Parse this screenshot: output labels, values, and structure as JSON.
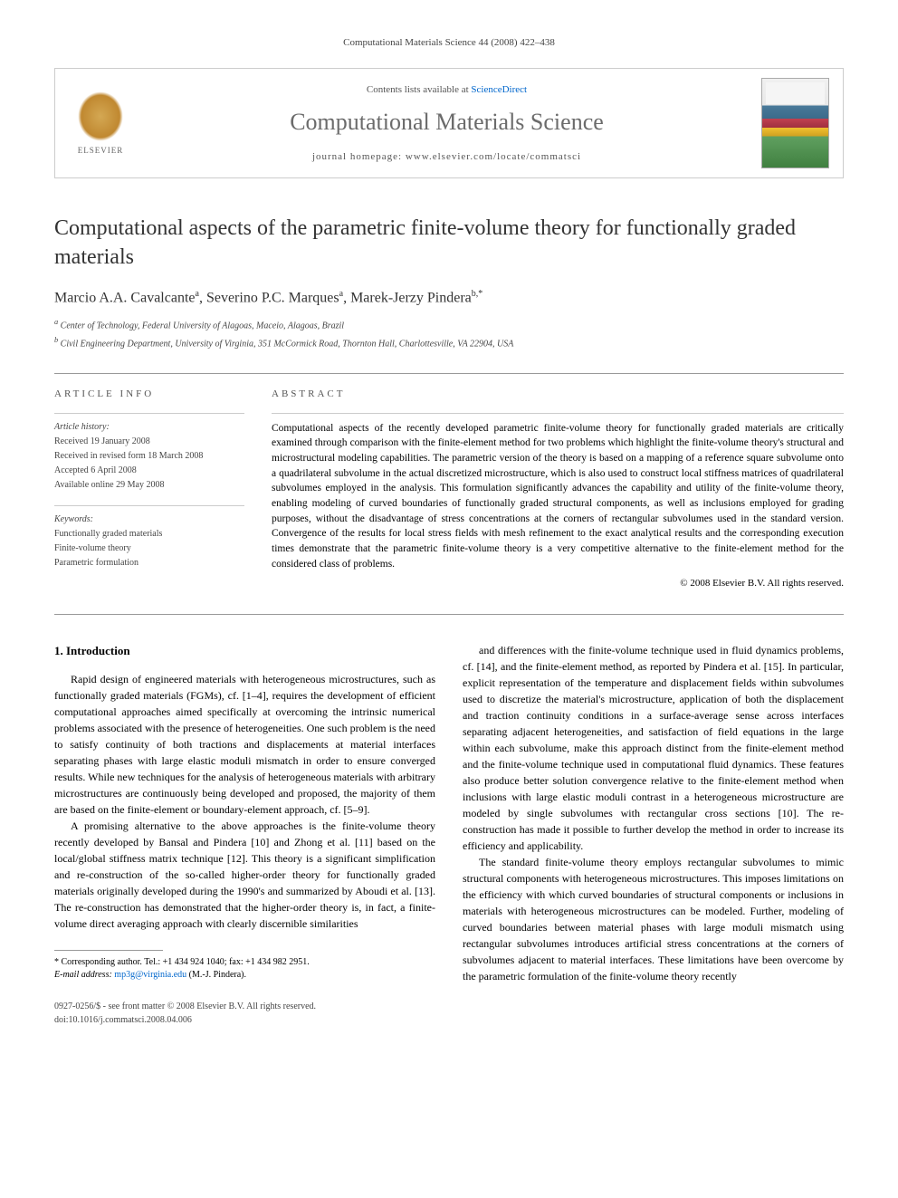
{
  "header": {
    "citation": "Computational Materials Science 44 (2008) 422–438"
  },
  "banner": {
    "publisher": "ELSEVIER",
    "contents_prefix": "Contents lists available at ",
    "contents_link": "ScienceDirect",
    "journal_name": "Computational Materials Science",
    "homepage_prefix": "journal homepage: ",
    "homepage_url": "www.elsevier.com/locate/commatsci"
  },
  "article": {
    "title": "Computational aspects of the parametric finite-volume theory for functionally graded materials",
    "authors_html": "Marcio A.A. Cavalcante",
    "author1": "Marcio A.A. Cavalcante",
    "author1_sup": "a",
    "author2": "Severino P.C. Marques",
    "author2_sup": "a",
    "author3": "Marek-Jerzy Pindera",
    "author3_sup": "b,*",
    "affiliation_a": "Center of Technology, Federal University of Alagoas, Maceio, Alagoas, Brazil",
    "affiliation_b": "Civil Engineering Department, University of Virginia, 351 McCormick Road, Thornton Hall, Charlottesville, VA 22904, USA"
  },
  "info": {
    "heading": "ARTICLE INFO",
    "history_label": "Article history:",
    "received": "Received 19 January 2008",
    "revised": "Received in revised form 18 March 2008",
    "accepted": "Accepted 6 April 2008",
    "online": "Available online 29 May 2008",
    "keywords_label": "Keywords:",
    "kw1": "Functionally graded materials",
    "kw2": "Finite-volume theory",
    "kw3": "Parametric formulation"
  },
  "abstract": {
    "heading": "ABSTRACT",
    "text": "Computational aspects of the recently developed parametric finite-volume theory for functionally graded materials are critically examined through comparison with the finite-element method for two problems which highlight the finite-volume theory's structural and microstructural modeling capabilities. The parametric version of the theory is based on a mapping of a reference square subvolume onto a quadrilateral subvolume in the actual discretized microstructure, which is also used to construct local stiffness matrices of quadrilateral subvolumes employed in the analysis. This formulation significantly advances the capability and utility of the finite-volume theory, enabling modeling of curved boundaries of functionally graded structural components, as well as inclusions employed for grading purposes, without the disadvantage of stress concentrations at the corners of rectangular subvolumes used in the standard version. Convergence of the results for local stress fields with mesh refinement to the exact analytical results and the corresponding execution times demonstrate that the parametric finite-volume theory is a very competitive alternative to the finite-element method for the considered class of problems.",
    "copyright": "© 2008 Elsevier B.V. All rights reserved."
  },
  "body": {
    "section_heading": "1. Introduction",
    "col1_p1": "Rapid design of engineered materials with heterogeneous microstructures, such as functionally graded materials (FGMs), cf. [1–4], requires the development of efficient computational approaches aimed specifically at overcoming the intrinsic numerical problems associated with the presence of heterogeneities. One such problem is the need to satisfy continuity of both tractions and displacements at material interfaces separating phases with large elastic moduli mismatch in order to ensure converged results. While new techniques for the analysis of heterogeneous materials with arbitrary microstructures are continuously being developed and proposed, the majority of them are based on the finite-element or boundary-element approach, cf. [5–9].",
    "col1_p2": "A promising alternative to the above approaches is the finite-volume theory recently developed by Bansal and Pindera [10] and Zhong et al. [11] based on the local/global stiffness matrix technique [12]. This theory is a significant simplification and re-construction of the so-called higher-order theory for functionally graded materials originally developed during the 1990's and summarized by Aboudi et al. [13]. The re-construction has demonstrated that the higher-order theory is, in fact, a finite-volume direct averaging approach with clearly discernible similarities",
    "col2_p1": "and differences with the finite-volume technique used in fluid dynamics problems, cf. [14], and the finite-element method, as reported by Pindera et al. [15]. In particular, explicit representation of the temperature and displacement fields within subvolumes used to discretize the material's microstructure, application of both the displacement and traction continuity conditions in a surface-average sense across interfaces separating adjacent heterogeneities, and satisfaction of field equations in the large within each subvolume, make this approach distinct from the finite-element method and the finite-volume technique used in computational fluid dynamics. These features also produce better solution convergence relative to the finite-element method when inclusions with large elastic moduli contrast in a heterogeneous microstructure are modeled by single subvolumes with rectangular cross sections [10]. The re-construction has made it possible to further develop the method in order to increase its efficiency and applicability.",
    "col2_p2": "The standard finite-volume theory employs rectangular subvolumes to mimic structural components with heterogeneous microstructures. This imposes limitations on the efficiency with which curved boundaries of structural components or inclusions in materials with heterogeneous microstructures can be modeled. Further, modeling of curved boundaries between material phases with large moduli mismatch using rectangular subvolumes introduces artificial stress concentrations at the corners of subvolumes adjacent to material interfaces. These limitations have been overcome by the parametric formulation of the finite-volume theory recently"
  },
  "footnote": {
    "corresponding": "* Corresponding author. Tel.: +1 434 924 1040; fax: +1 434 982 2951.",
    "email_label": "E-mail address:",
    "email": "mp3g@virginia.edu",
    "email_person": "(M.-J. Pindera)."
  },
  "footer": {
    "issn": "0927-0256/$ - see front matter © 2008 Elsevier B.V. All rights reserved.",
    "doi": "doi:10.1016/j.commatsci.2008.04.006"
  },
  "colors": {
    "link": "#0066cc",
    "text": "#000000",
    "gray_text": "#6b6b6b"
  }
}
